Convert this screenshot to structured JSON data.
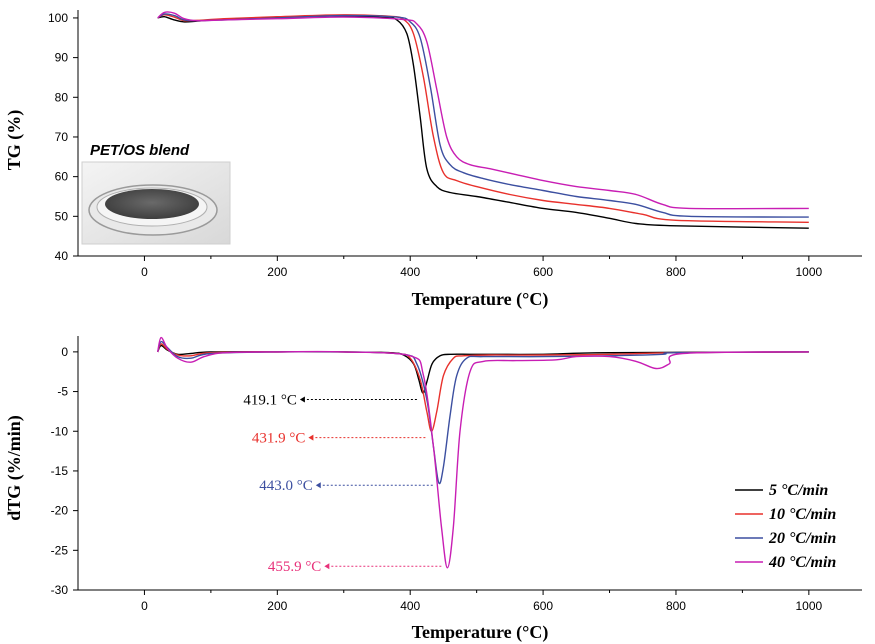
{
  "chart_data": [
    {
      "type": "line",
      "xlabel": "Temperature (°C)",
      "ylabel": "TG (%)",
      "xlim": [
        -100,
        1080
      ],
      "ylim": [
        40,
        102
      ],
      "xticks": [
        0,
        200,
        400,
        600,
        800,
        1000
      ],
      "yticks": [
        40,
        50,
        60,
        70,
        80,
        90,
        100
      ],
      "inset_label": "PET/OS blend",
      "series": [
        {
          "name": "5 °C/min",
          "color": "#000000",
          "x": [
            20,
            30,
            45,
            60,
            80,
            120,
            200,
            300,
            360,
            380,
            395,
            405,
            415,
            425,
            440,
            460,
            500,
            550,
            600,
            650,
            700,
            740,
            800,
            1000
          ],
          "y": [
            100,
            100.3,
            99.5,
            99.0,
            99.2,
            99.7,
            100.2,
            100.5,
            100.1,
            99.5,
            96,
            88,
            75,
            62,
            57.5,
            56,
            55,
            53.5,
            52,
            51,
            49.5,
            48.2,
            47.6,
            47.0
          ]
        },
        {
          "name": "10 °C/min",
          "color": "#e8312c",
          "x": [
            20,
            30,
            45,
            60,
            80,
            120,
            200,
            300,
            370,
            390,
            405,
            420,
            435,
            450,
            470,
            500,
            550,
            600,
            650,
            700,
            750,
            800,
            1000
          ],
          "y": [
            100,
            100.8,
            100.2,
            99.3,
            99.4,
            99.8,
            100.3,
            100.8,
            100.4,
            99.6,
            96,
            85,
            70,
            61,
            59,
            57.5,
            55.5,
            54,
            53,
            52,
            50.5,
            49,
            48.5
          ]
        },
        {
          "name": "20 °C/min",
          "color": "#3c4fa0",
          "x": [
            20,
            30,
            45,
            60,
            80,
            120,
            200,
            300,
            380,
            400,
            415,
            430,
            445,
            460,
            480,
            510,
            550,
            600,
            650,
            700,
            740,
            780,
            820,
            1000
          ],
          "y": [
            100,
            101.0,
            100.6,
            99.5,
            99.3,
            99.5,
            100.0,
            100.6,
            100.2,
            99.0,
            95,
            83,
            68,
            63,
            61,
            59.5,
            58,
            56.5,
            55,
            54,
            53,
            51,
            50,
            49.8
          ]
        },
        {
          "name": "40 °C/min",
          "color": "#c81eb4",
          "x": [
            20,
            30,
            45,
            60,
            80,
            120,
            200,
            300,
            390,
            410,
            425,
            440,
            455,
            470,
            490,
            520,
            560,
            600,
            650,
            700,
            740,
            780,
            820,
            1000
          ],
          "y": [
            100,
            101.4,
            101.2,
            99.8,
            99.3,
            99.5,
            99.8,
            100.2,
            99.6,
            98.5,
            94,
            82,
            70,
            65,
            63,
            62,
            60.5,
            59,
            57.5,
            56.5,
            55.5,
            53,
            52,
            52
          ]
        }
      ]
    },
    {
      "type": "line",
      "xlabel": "Temperature (°C)",
      "ylabel": "dTG (%/min)",
      "xlim": [
        -100,
        1080
      ],
      "ylim": [
        -30,
        2
      ],
      "xticks": [
        0,
        200,
        400,
        600,
        800,
        1000
      ],
      "yticks": [
        -30,
        -25,
        -20,
        -15,
        -10,
        -5,
        0
      ],
      "legend_position": "bottom-right",
      "series": [
        {
          "name": "5 °C/min",
          "color": "#000000",
          "x": [
            20,
            25,
            35,
            50,
            70,
            100,
            200,
            300,
            370,
            390,
            405,
            413,
            419,
            425,
            433,
            445,
            460,
            500,
            600,
            700,
            1000
          ],
          "y": [
            0,
            0.8,
            0.2,
            -0.3,
            -0.2,
            0,
            0,
            0,
            -0.1,
            -0.4,
            -1.5,
            -3.5,
            -5.2,
            -3.8,
            -1.5,
            -0.5,
            -0.3,
            -0.3,
            -0.3,
            -0.1,
            0
          ]
        },
        {
          "name": "10 °C/min",
          "color": "#e8312c",
          "x": [
            20,
            25,
            35,
            50,
            70,
            100,
            200,
            300,
            380,
            400,
            415,
            425,
            432,
            440,
            450,
            465,
            480,
            520,
            600,
            700,
            800,
            1000
          ],
          "y": [
            0,
            1.0,
            0.3,
            -0.4,
            -0.5,
            -0.1,
            0,
            0,
            -0.2,
            -0.8,
            -3.5,
            -7.5,
            -10.0,
            -7.5,
            -3.0,
            -0.8,
            -0.5,
            -0.4,
            -0.4,
            -0.3,
            -0.1,
            0
          ]
        },
        {
          "name": "20 °C/min",
          "color": "#3c4fa0",
          "x": [
            20,
            25,
            35,
            50,
            70,
            100,
            200,
            300,
            390,
            410,
            425,
            435,
            443,
            450,
            460,
            470,
            485,
            510,
            600,
            700,
            780,
            800,
            1000
          ],
          "y": [
            0,
            1.3,
            0.5,
            -0.6,
            -0.8,
            -0.2,
            0,
            0,
            -0.3,
            -1.5,
            -6.0,
            -12.0,
            -16.5,
            -14.5,
            -8.0,
            -3.0,
            -0.8,
            -0.6,
            -0.6,
            -0.5,
            -0.3,
            -0.1,
            0
          ]
        },
        {
          "name": "40 °C/min",
          "color": "#c81eb4",
          "x": [
            20,
            25,
            35,
            50,
            70,
            90,
            120,
            200,
            300,
            400,
            420,
            435,
            447,
            456,
            465,
            475,
            490,
            510,
            560,
            620,
            650,
            700,
            740,
            770,
            790,
            810,
            1000
          ],
          "y": [
            0,
            1.8,
            0.4,
            -0.8,
            -1.3,
            -0.6,
            -0.1,
            0,
            0,
            -0.5,
            -3.0,
            -12.0,
            -22.0,
            -27.2,
            -22.0,
            -10.0,
            -2.5,
            -1.2,
            -1.1,
            -1.0,
            -0.6,
            -0.6,
            -1.2,
            -2.1,
            -1.5,
            -0.2,
            0
          ]
        }
      ],
      "annotations": [
        {
          "text": "419.1 °C",
          "x": 419.1,
          "y": -5.2,
          "label_y": -6.0,
          "color": "#000000"
        },
        {
          "text": "431.9 °C",
          "x": 431.9,
          "y": -10.0,
          "label_y": -10.8,
          "color": "#e8312c"
        },
        {
          "text": "443.0 °C",
          "x": 443.0,
          "y": -16.5,
          "label_y": -16.8,
          "color": "#3c4fa0"
        },
        {
          "text": "455.9 °C",
          "x": 455.9,
          "y": -27.2,
          "label_y": -27.0,
          "color": "#e8317a"
        }
      ]
    }
  ]
}
